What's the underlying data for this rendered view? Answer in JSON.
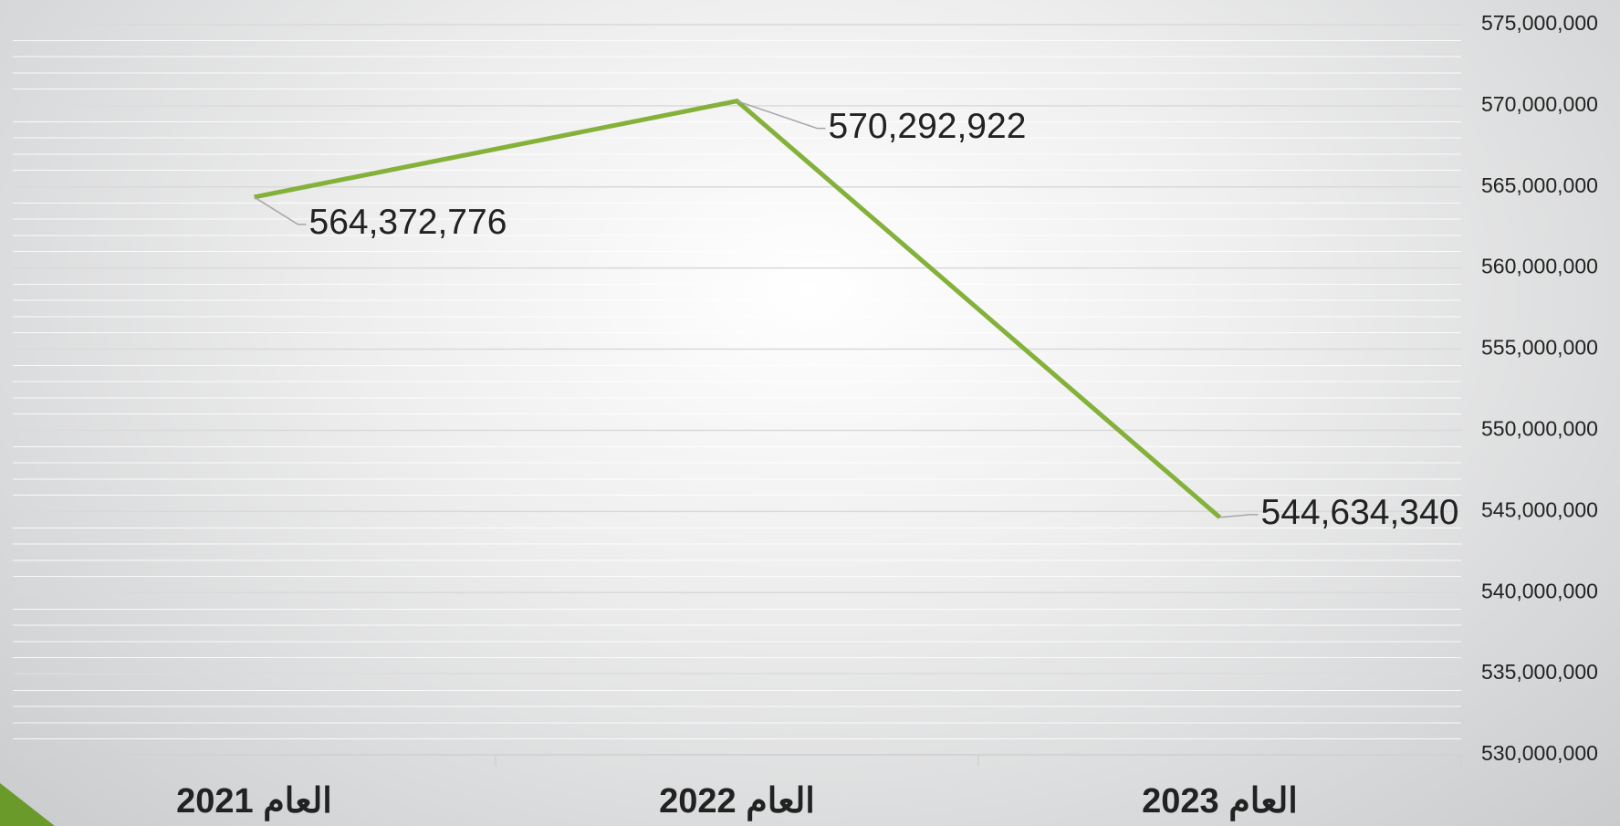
{
  "chart_data": {
    "type": "line",
    "categories": [
      "العام 2021",
      "العام 2022",
      "العام 2023"
    ],
    "series": [
      {
        "name": "value",
        "color": "#84b13a",
        "values": [
          564372776,
          570292922,
          544634340
        ],
        "value_labels": [
          "564,372,776",
          "570,292,922",
          "544,634,340"
        ]
      }
    ],
    "ylim": [
      530000000,
      575000000
    ],
    "yticks": [
      {
        "value": 530000000,
        "label": "530,000,000"
      },
      {
        "value": 535000000,
        "label": "535,000,000"
      },
      {
        "value": 540000000,
        "label": "540,000,000"
      },
      {
        "value": 545000000,
        "label": "545,000,000"
      },
      {
        "value": 550000000,
        "label": "550,000,000"
      },
      {
        "value": 555000000,
        "label": "555,000,000"
      },
      {
        "value": 560000000,
        "label": "560,000,000"
      },
      {
        "value": 565000000,
        "label": "565,000,000"
      },
      {
        "value": 570000000,
        "label": "570,000,000"
      },
      {
        "value": 575000000,
        "label": "575,000,000"
      }
    ],
    "grid": true,
    "y_axis_side": "right"
  }
}
